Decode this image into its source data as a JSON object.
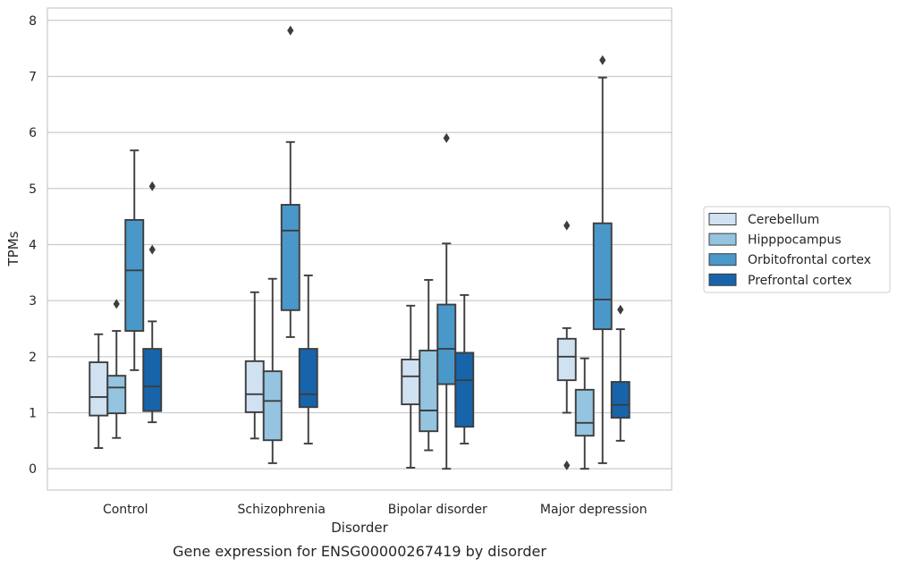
{
  "chart_data": {
    "type": "boxplot",
    "title": "Gene expression for ENSG00000267419 by disorder",
    "xlabel": "Disorder",
    "ylabel": "TPMs",
    "ylim": [
      -0.38,
      8.22
    ],
    "yticks": [
      "0",
      "1",
      "2",
      "3",
      "4",
      "5",
      "6",
      "7",
      "8"
    ],
    "grid": "horizontal",
    "legend_position": "right",
    "categories": [
      "Control",
      "Schizophrenia",
      "Bipolar disorder",
      "Major depression"
    ],
    "series": [
      {
        "name": "Cerebellum",
        "color": "#d0e1f2",
        "boxes": [
          {
            "whislo": 0.37,
            "q1": 0.95,
            "med": 1.28,
            "q3": 1.9,
            "whishi": 2.4,
            "fliers": []
          },
          {
            "whislo": 0.54,
            "q1": 1.01,
            "med": 1.33,
            "q3": 1.92,
            "whishi": 3.15,
            "fliers": []
          },
          {
            "whislo": 0.02,
            "q1": 1.15,
            "med": 1.65,
            "q3": 1.95,
            "whishi": 2.91,
            "fliers": []
          },
          {
            "whislo": 1.0,
            "q1": 1.58,
            "med": 2.0,
            "q3": 2.32,
            "whishi": 2.51,
            "fliers": [
              0.06,
              4.34
            ]
          }
        ]
      },
      {
        "name": "Hipppocampus",
        "color": "#94c4df",
        "boxes": [
          {
            "whislo": 0.55,
            "q1": 0.99,
            "med": 1.45,
            "q3": 1.66,
            "whishi": 2.46,
            "fliers": [
              2.94
            ]
          },
          {
            "whislo": 0.1,
            "q1": 0.51,
            "med": 1.21,
            "q3": 1.74,
            "whishi": 3.39,
            "fliers": []
          },
          {
            "whislo": 0.33,
            "q1": 0.67,
            "med": 1.04,
            "q3": 2.11,
            "whishi": 3.37,
            "fliers": []
          },
          {
            "whislo": 0.0,
            "q1": 0.59,
            "med": 0.82,
            "q3": 1.41,
            "whishi": 1.97,
            "fliers": []
          }
        ]
      },
      {
        "name": "Orbitofrontal cortex",
        "color": "#4a98c9",
        "boxes": [
          {
            "whislo": 1.76,
            "q1": 2.46,
            "med": 3.54,
            "q3": 4.44,
            "whishi": 5.68,
            "fliers": []
          },
          {
            "whislo": 2.35,
            "q1": 2.83,
            "med": 4.25,
            "q3": 4.71,
            "whishi": 5.83,
            "fliers": [
              7.82
            ]
          },
          {
            "whislo": 0.0,
            "q1": 1.51,
            "med": 2.14,
            "q3": 2.93,
            "whishi": 4.02,
            "fliers": [
              5.9
            ]
          },
          {
            "whislo": 0.1,
            "q1": 2.49,
            "med": 3.02,
            "q3": 4.38,
            "whishi": 6.98,
            "fliers": [
              7.29
            ]
          }
        ]
      },
      {
        "name": "Prefrontal cortex",
        "color": "#1764ab",
        "boxes": [
          {
            "whislo": 0.83,
            "q1": 1.03,
            "med": 1.47,
            "q3": 2.14,
            "whishi": 2.63,
            "fliers": [
              3.91,
              5.04
            ]
          },
          {
            "whislo": 0.45,
            "q1": 1.1,
            "med": 1.33,
            "q3": 2.14,
            "whishi": 3.45,
            "fliers": []
          },
          {
            "whislo": 0.45,
            "q1": 0.75,
            "med": 1.58,
            "q3": 2.07,
            "whishi": 3.1,
            "fliers": []
          },
          {
            "whislo": 0.5,
            "q1": 0.91,
            "med": 1.14,
            "q3": 1.55,
            "whishi": 2.49,
            "fliers": [
              2.84
            ]
          }
        ]
      }
    ]
  }
}
